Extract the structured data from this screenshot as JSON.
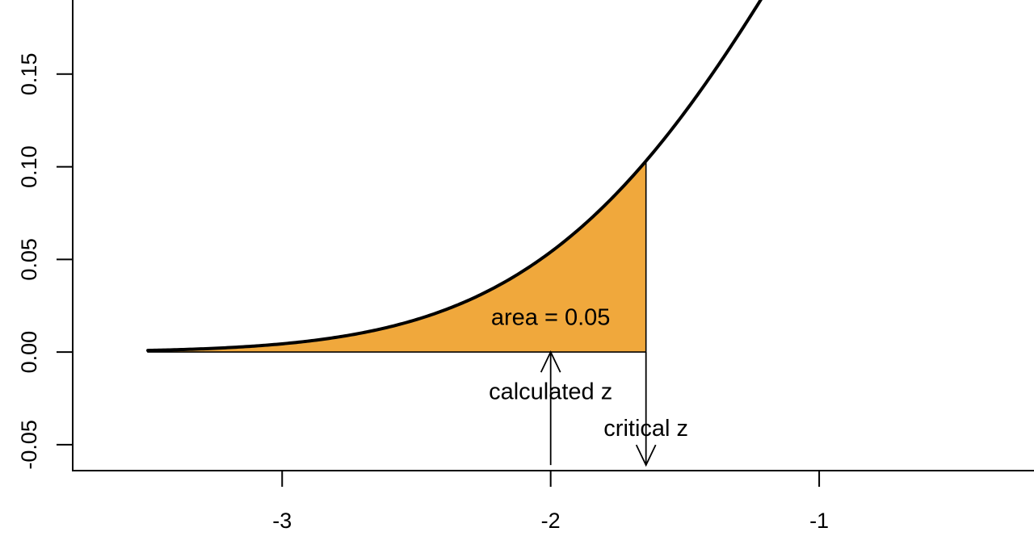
{
  "chart_data": {
    "type": "area",
    "title": "",
    "xlabel": "",
    "ylabel": "",
    "xlim": [
      -3.78,
      -0.2
    ],
    "ylim": [
      -0.064,
      0.19
    ],
    "grid": false,
    "legend": "none",
    "curve": {
      "distribution": "normal",
      "mean": 0,
      "sd": 1,
      "x_start": -3.5
    },
    "shaded_region": {
      "x_from": -3.5,
      "x_to": -1.645,
      "fill_color": "#F0A83C",
      "area": 0.05
    },
    "x_ticks": [
      {
        "value": -3,
        "label": "-3"
      },
      {
        "value": -2,
        "label": "-2"
      },
      {
        "value": -1,
        "label": "-1"
      }
    ],
    "y_ticks": [
      {
        "value": -0.05,
        "label": "-0.05"
      },
      {
        "value": 0.0,
        "label": "0.00"
      },
      {
        "value": 0.05,
        "label": "0.05"
      },
      {
        "value": 0.1,
        "label": "0.10"
      },
      {
        "value": 0.15,
        "label": "0.15"
      }
    ],
    "annotations": [
      {
        "id": "area",
        "text": "area = 0.05",
        "x": -2.0,
        "y": 0.019
      },
      {
        "id": "calc",
        "text": "calculated z",
        "x": -2.0,
        "y": -0.021
      },
      {
        "id": "crit",
        "text": "critical z",
        "x": -1.645,
        "y": -0.041
      }
    ],
    "arrows": [
      {
        "id": "calc-arrow",
        "x": -2.0,
        "y_from": -0.061,
        "y_to": 0.0,
        "head": "top"
      },
      {
        "id": "crit-arrow",
        "x": -1.645,
        "y_from": 0.0,
        "y_to": -0.061,
        "head": "bottom"
      }
    ],
    "colors": {
      "curve": "#000000",
      "axis": "#000000",
      "shade": "#F0A83C"
    }
  }
}
